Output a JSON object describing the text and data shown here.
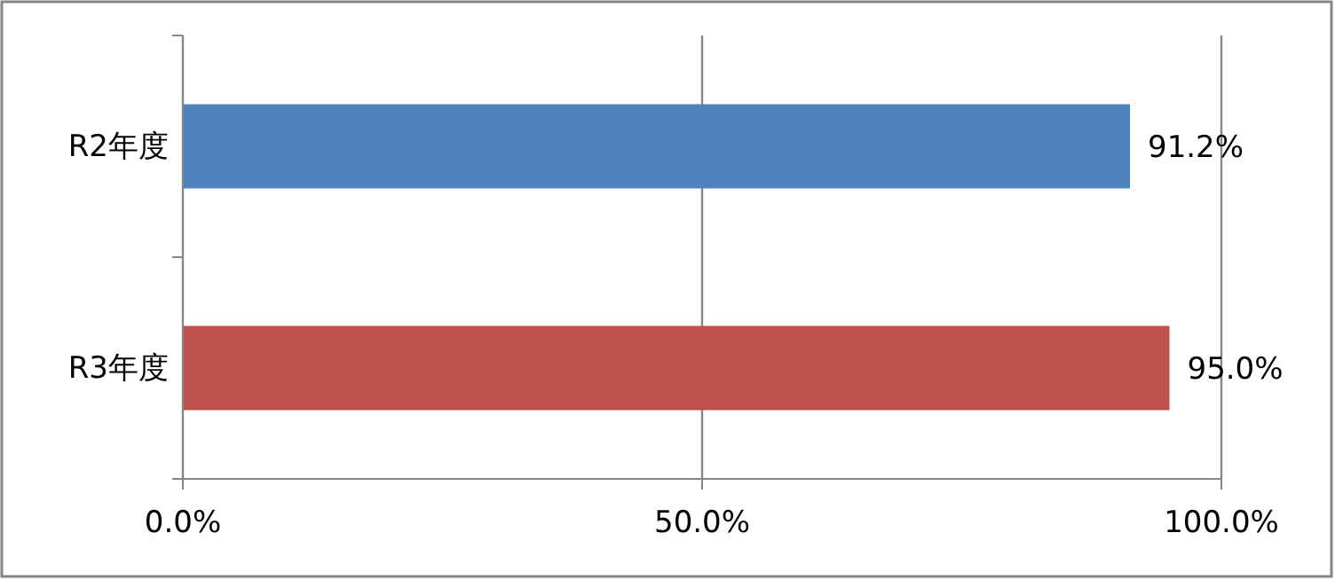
{
  "chart_data": {
    "type": "bar",
    "orientation": "horizontal",
    "categories": [
      "R2年度",
      "R3年度"
    ],
    "values": [
      91.2,
      95.0
    ],
    "colors": [
      "#4f81bd",
      "#c0504d"
    ],
    "value_labels": [
      "91.2%",
      "95.0%"
    ],
    "xlim": [
      0,
      100
    ],
    "xticks": [
      {
        "value": 0,
        "label": "0.0%"
      },
      {
        "value": 50,
        "label": "50.0%"
      },
      {
        "value": 100,
        "label": "100.0%"
      }
    ],
    "grid": "x"
  }
}
